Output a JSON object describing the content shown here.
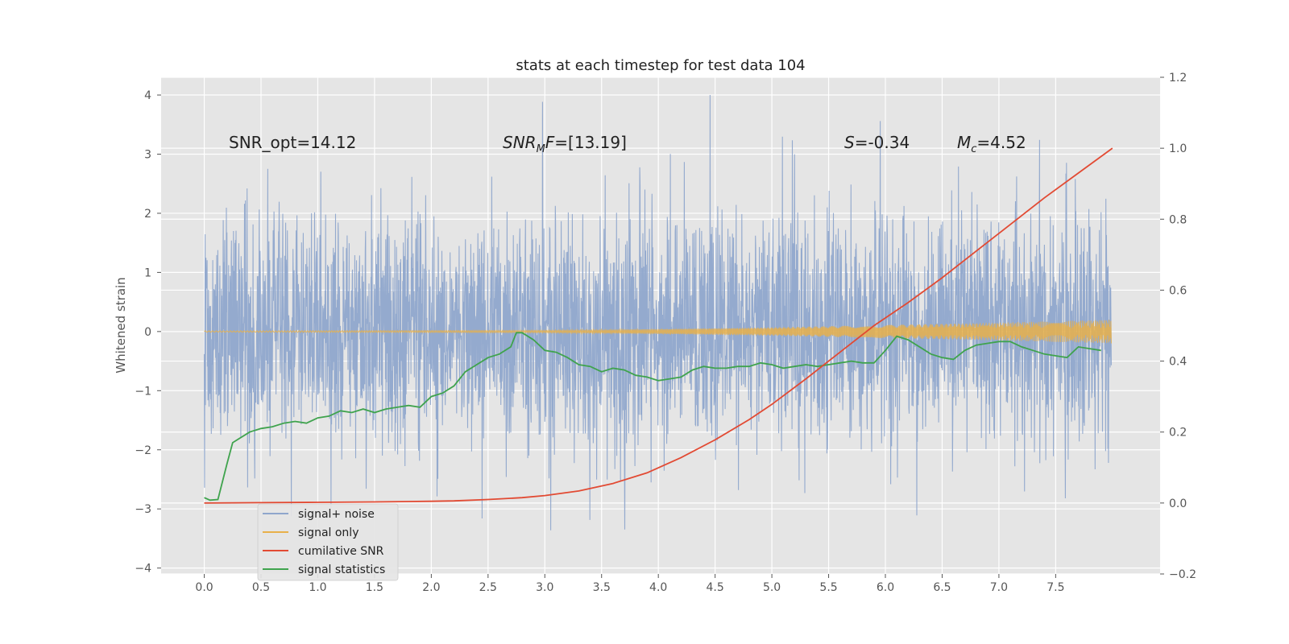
{
  "chart_data": {
    "type": "line",
    "title": "stats at each timestep for test data 104",
    "ylabel": "Whitened strain",
    "xlim": [
      -0.38,
      8.42
    ],
    "ylim": [
      -4.1,
      4.3
    ],
    "y2lim": [
      -0.2,
      1.2
    ],
    "x_ticks": [
      0.0,
      0.5,
      1.0,
      1.5,
      2.0,
      2.5,
      3.0,
      3.5,
      4.0,
      4.5,
      5.0,
      5.5,
      6.0,
      6.5,
      7.0,
      7.5
    ],
    "x_tick_labels": [
      "0.0",
      "0.5",
      "1.0",
      "1.5",
      "2.0",
      "2.5",
      "3.0",
      "3.5",
      "4.0",
      "4.5",
      "5.0",
      "5.5",
      "6.0",
      "6.5",
      "7.0",
      "7.5"
    ],
    "y_ticks": [
      -4,
      -3,
      -2,
      -1,
      0,
      1,
      2,
      3,
      4
    ],
    "y_tick_labels": [
      "−4",
      "−3",
      "−2",
      "−1",
      "0",
      "1",
      "2",
      "3",
      "4"
    ],
    "y2_ticks": [
      -0.2,
      0.0,
      0.2,
      0.4,
      0.6,
      0.8,
      1.0,
      1.2
    ],
    "y2_tick_labels": [
      "−0.2",
      "0.0",
      "0.2",
      "0.4",
      "0.6",
      "0.8",
      "1.0",
      "1.2"
    ],
    "grid": true,
    "annotations": [
      {
        "id": "snr-opt",
        "text": "SNR_opt=14.12"
      },
      {
        "id": "snr-mf",
        "text": "SNR_MF=[13.19]"
      },
      {
        "id": "s-value",
        "text": "S=-0.34"
      },
      {
        "id": "mc-value",
        "text": "M_c=4.52"
      }
    ],
    "legend": {
      "placement": "lower-left",
      "entries": [
        {
          "label": "signal+ noise",
          "color": "#8fa6cc"
        },
        {
          "label": "signal only",
          "color": "#e8b04a"
        },
        {
          "label": "cumilative SNR",
          "color": "#e24a33"
        },
        {
          "label": "signal statistics",
          "color": "#3fa34d"
        }
      ]
    },
    "series": [
      {
        "name": "signal+ noise",
        "axis": "left",
        "color": "#8fa6cc",
        "x_range": [
          0.0,
          7.99
        ],
        "amplitude_sd": 1.0,
        "y_range": [
          -3.6,
          4.0
        ]
      },
      {
        "name": "signal only",
        "axis": "left",
        "color": "#e8b04a",
        "x_range": [
          0.0,
          7.99
        ],
        "envelope": {
          "x": [
            0,
            3,
            4,
            5,
            6,
            7,
            8
          ],
          "y": [
            0.01,
            0.02,
            0.04,
            0.07,
            0.11,
            0.15,
            0.2
          ]
        }
      },
      {
        "name": "cumilative SNR",
        "axis": "right",
        "color": "#e24a33",
        "x": [
          0.0,
          0.5,
          1.0,
          1.5,
          2.0,
          2.2,
          2.5,
          2.8,
          3.0,
          3.3,
          3.6,
          3.9,
          4.2,
          4.5,
          4.8,
          5.0,
          5.3,
          5.6,
          5.9,
          6.2,
          6.5,
          6.8,
          7.1,
          7.4,
          7.7,
          8.0
        ],
        "y": [
          0.0,
          0.001,
          0.002,
          0.003,
          0.005,
          0.006,
          0.01,
          0.015,
          0.021,
          0.034,
          0.055,
          0.085,
          0.128,
          0.178,
          0.235,
          0.278,
          0.35,
          0.425,
          0.5,
          0.565,
          0.635,
          0.71,
          0.785,
          0.86,
          0.93,
          1.0
        ]
      },
      {
        "name": "signal statistics",
        "axis": "right",
        "color": "#3fa34d",
        "x": [
          0.0,
          0.05,
          0.12,
          0.2,
          0.25,
          0.3,
          0.4,
          0.5,
          0.6,
          0.7,
          0.8,
          0.9,
          1.0,
          1.1,
          1.2,
          1.3,
          1.4,
          1.5,
          1.6,
          1.7,
          1.8,
          1.9,
          2.0,
          2.1,
          2.2,
          2.3,
          2.4,
          2.5,
          2.6,
          2.7,
          2.75,
          2.8,
          2.9,
          3.0,
          3.1,
          3.2,
          3.3,
          3.4,
          3.5,
          3.6,
          3.7,
          3.8,
          3.9,
          4.0,
          4.1,
          4.2,
          4.3,
          4.4,
          4.5,
          4.6,
          4.7,
          4.8,
          4.9,
          5.0,
          5.1,
          5.2,
          5.3,
          5.4,
          5.5,
          5.6,
          5.7,
          5.8,
          5.9,
          6.0,
          6.1,
          6.2,
          6.3,
          6.4,
          6.5,
          6.6,
          6.7,
          6.8,
          6.9,
          7.0,
          7.1,
          7.2,
          7.3,
          7.4,
          7.5,
          7.6,
          7.7,
          7.8,
          7.9
        ],
        "y": [
          0.015,
          0.008,
          0.01,
          0.11,
          0.17,
          0.18,
          0.2,
          0.21,
          0.215,
          0.225,
          0.23,
          0.225,
          0.24,
          0.245,
          0.26,
          0.255,
          0.265,
          0.255,
          0.265,
          0.27,
          0.275,
          0.27,
          0.3,
          0.31,
          0.33,
          0.37,
          0.39,
          0.41,
          0.42,
          0.44,
          0.48,
          0.48,
          0.46,
          0.43,
          0.425,
          0.41,
          0.39,
          0.385,
          0.37,
          0.38,
          0.375,
          0.36,
          0.355,
          0.345,
          0.35,
          0.355,
          0.375,
          0.385,
          0.38,
          0.38,
          0.385,
          0.385,
          0.395,
          0.39,
          0.38,
          0.385,
          0.39,
          0.385,
          0.39,
          0.395,
          0.4,
          0.395,
          0.395,
          0.43,
          0.47,
          0.46,
          0.44,
          0.42,
          0.41,
          0.405,
          0.43,
          0.445,
          0.45,
          0.455,
          0.455,
          0.44,
          0.43,
          0.42,
          0.415,
          0.41,
          0.44,
          0.435,
          0.43
        ]
      }
    ]
  }
}
